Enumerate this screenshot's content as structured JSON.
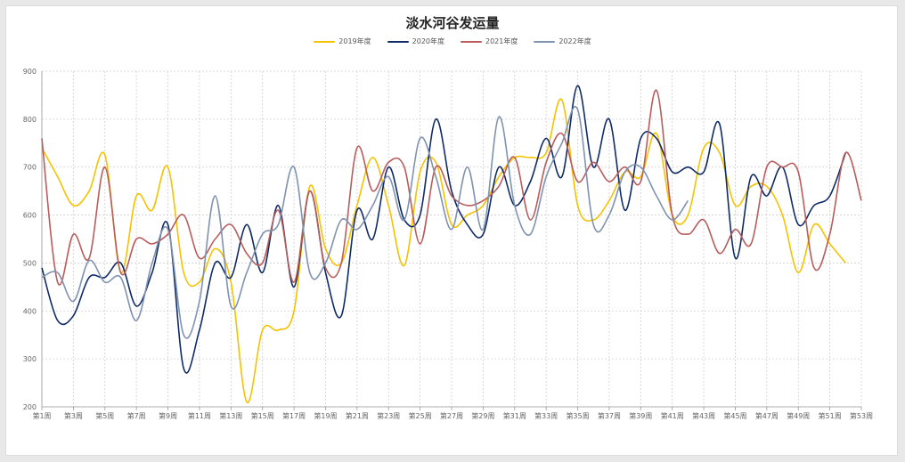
{
  "chart_data": {
    "type": "line",
    "title": "淡水河谷发运量",
    "xlabel": "",
    "ylabel": "",
    "ylim": [
      200,
      900
    ],
    "yticks": [
      200,
      300,
      400,
      500,
      600,
      700,
      800,
      900
    ],
    "grid": true,
    "legend_position": "top-center",
    "categories": [
      "第1周",
      "第2周",
      "第3周",
      "第4周",
      "第5周",
      "第6周",
      "第7周",
      "第8周",
      "第9周",
      "第10周",
      "第11周",
      "第12周",
      "第13周",
      "第14周",
      "第15周",
      "第16周",
      "第17周",
      "第18周",
      "第19周",
      "第20周",
      "第21周",
      "第22周",
      "第23周",
      "第24周",
      "第25周",
      "第26周",
      "第27周",
      "第28周",
      "第29周",
      "第30周",
      "第31周",
      "第32周",
      "第33周",
      "第34周",
      "第35周",
      "第36周",
      "第37周",
      "第38周",
      "第39周",
      "第40周",
      "第41周",
      "第42周",
      "第43周",
      "第44周",
      "第45周",
      "第46周",
      "第47周",
      "第48周",
      "第49周",
      "第50周",
      "第51周",
      "第52周",
      "第53周"
    ],
    "x_tick_labels": [
      "第1周",
      "第3周",
      "第5周",
      "第7周",
      "第9周",
      "第11周",
      "第13周",
      "第15周",
      "第17周",
      "第19周",
      "第21周",
      "第23周",
      "第25周",
      "第27周",
      "第29周",
      "第31周",
      "第33周",
      "第35周",
      "第37周",
      "第39周",
      "第41周",
      "第43周",
      "第45周",
      "第47周",
      "第49周",
      "第51周",
      "第53周"
    ],
    "series": [
      {
        "name": "2019年度",
        "color": "#f5c200",
        "values": [
          740,
          680,
          620,
          650,
          725,
          480,
          640,
          610,
          700,
          480,
          460,
          530,
          460,
          210,
          360,
          360,
          400,
          660,
          530,
          500,
          620,
          720,
          620,
          495,
          690,
          710,
          580,
          600,
          620,
          680,
          720,
          720,
          730,
          840,
          620,
          590,
          630,
          690,
          680,
          770,
          600,
          600,
          740,
          730,
          620,
          660,
          660,
          600,
          480,
          580,
          540,
          500,
          null
        ]
      },
      {
        "name": "2020年度",
        "color": "#0f2b66",
        "values": [
          490,
          380,
          390,
          470,
          470,
          500,
          410,
          480,
          580,
          280,
          360,
          500,
          470,
          580,
          480,
          620,
          450,
          650,
          480,
          390,
          610,
          550,
          700,
          590,
          600,
          800,
          650,
          580,
          560,
          700,
          620,
          670,
          760,
          680,
          870,
          700,
          800,
          610,
          760,
          760,
          690,
          700,
          690,
          790,
          510,
          680,
          640,
          700,
          580,
          620,
          640,
          730,
          null
        ]
      },
      {
        "name": "2021年度",
        "color": "#b85c5c",
        "values": [
          760,
          460,
          560,
          510,
          700,
          480,
          550,
          540,
          560,
          600,
          510,
          550,
          580,
          520,
          500,
          610,
          460,
          650,
          490,
          500,
          740,
          650,
          710,
          700,
          540,
          700,
          640,
          620,
          630,
          660,
          720,
          590,
          710,
          770,
          670,
          710,
          670,
          700,
          670,
          860,
          600,
          560,
          590,
          520,
          570,
          540,
          700,
          700,
          690,
          490,
          560,
          730,
          630
        ]
      },
      {
        "name": "2022年度",
        "color": "#7f92b0",
        "values": [
          470,
          480,
          420,
          505,
          460,
          470,
          380,
          500,
          570,
          350,
          420,
          640,
          410,
          480,
          560,
          580,
          700,
          480,
          500,
          590,
          570,
          620,
          680,
          590,
          760,
          680,
          570,
          700,
          570,
          805,
          620,
          560,
          680,
          750,
          820,
          580,
          600,
          690,
          700,
          640,
          590,
          630,
          null,
          null,
          null,
          null,
          null,
          null,
          null,
          null,
          null,
          null,
          null
        ]
      }
    ]
  }
}
